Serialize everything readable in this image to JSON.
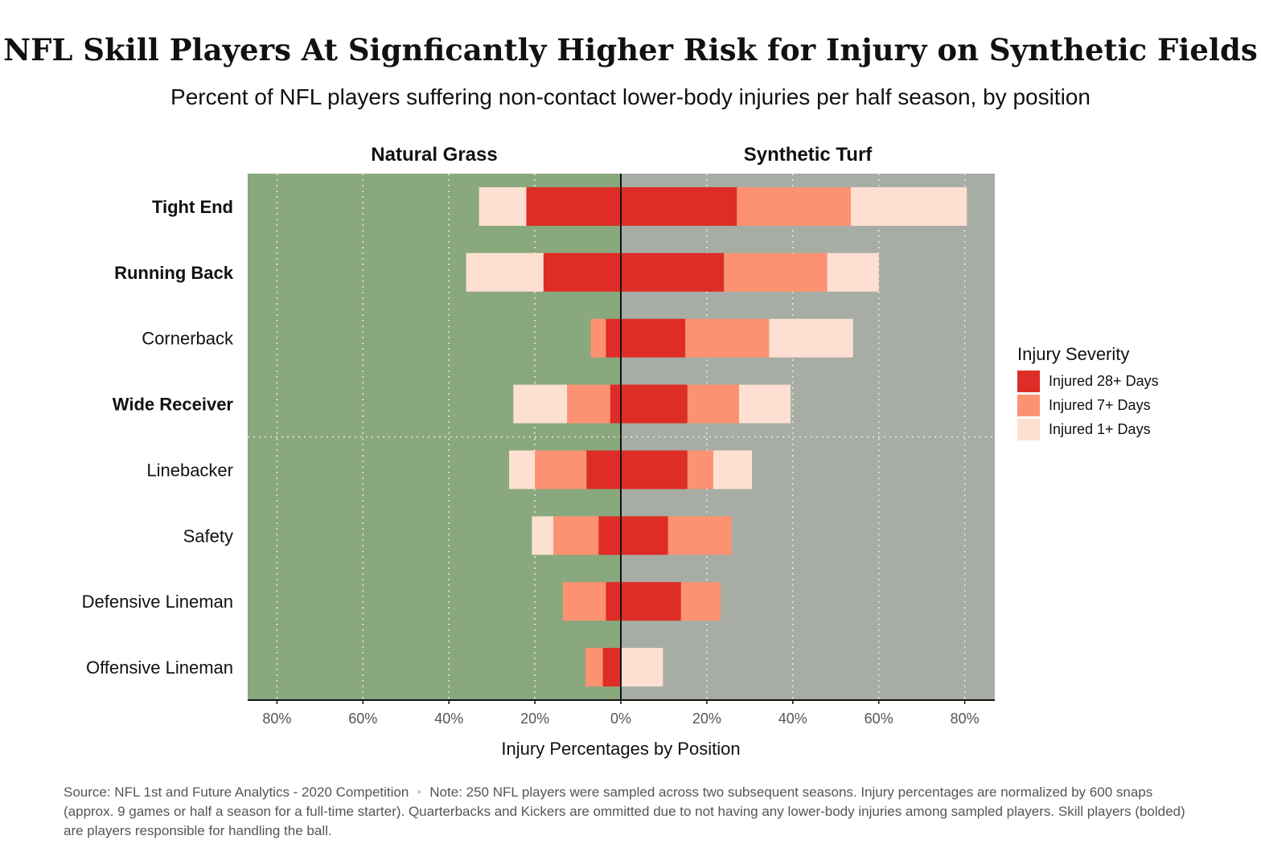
{
  "chart_data": {
    "type": "bar",
    "title": "NFL Skill Players At Signficantly Higher Risk for Injury on Synthetic Fields",
    "subtitle": "Percent of NFL players suffering non-contact lower-body injuries per half season, by position",
    "xlabel": "Injury Percentages by Position",
    "xlim": [
      -0.87,
      0.87
    ],
    "xticks": [
      -0.8,
      -0.6,
      -0.4,
      -0.2,
      0,
      0.2,
      0.4,
      0.6,
      0.8
    ],
    "xtick_labels": [
      "80%",
      "60%",
      "40%",
      "20%",
      "0%",
      "20%",
      "40%",
      "60%",
      "80%"
    ],
    "panels": [
      {
        "key": "grass",
        "label": "Natural Grass",
        "color": "#89a87d"
      },
      {
        "key": "turf",
        "label": "Synthetic Turf",
        "color": "#a7ada4"
      }
    ],
    "categories": [
      "Tight End",
      "Running Back",
      "Cornerback",
      "Wide Receiver",
      "Linebacker",
      "Safety",
      "Defensive Lineman",
      "Offensive Lineman"
    ],
    "skill_positions": [
      "Tight End",
      "Running Back",
      "Wide Receiver"
    ],
    "divider_after": "Wide Receiver",
    "legend": {
      "title": "Injury Severity",
      "position": "right"
    },
    "series": [
      {
        "name": "Injured 28+ Days",
        "color": "#de2d26",
        "grass": [
          0.22,
          0.18,
          0.035,
          0.025,
          0.08,
          0.052,
          0.035,
          0.042
        ],
        "turf": [
          0.27,
          0.24,
          0.15,
          0.155,
          0.155,
          0.11,
          0.14,
          0.0
        ]
      },
      {
        "name": "Injured 7+ Days",
        "color": "#fc9272",
        "grass": [
          0.0,
          0.0,
          0.035,
          0.1,
          0.12,
          0.105,
          0.1,
          0.04
        ],
        "turf": [
          0.265,
          0.24,
          0.195,
          0.12,
          0.06,
          0.148,
          0.092,
          0.0
        ]
      },
      {
        "name": "Injured 1+ Days",
        "color": "#fee0d2",
        "grass": [
          0.11,
          0.18,
          0.0,
          0.125,
          0.06,
          0.05,
          0.0,
          0.0
        ],
        "turf": [
          0.27,
          0.12,
          0.195,
          0.12,
          0.09,
          0.0,
          0.0,
          0.098
        ]
      }
    ]
  },
  "caption": {
    "source": "Source: NFL 1st and Future Analytics - 2020 Competition",
    "separator": "•",
    "note": "Note: 250 NFL players were sampled across two subsequent seasons. Injury percentages are normalized by 600 snaps (approx. 9 games or half a season for a full-time starter). Quarterbacks and Kickers are ommitted due to not having any lower-body injuries among sampled players. Skill players (bolded) are players responsible for handling the ball."
  }
}
